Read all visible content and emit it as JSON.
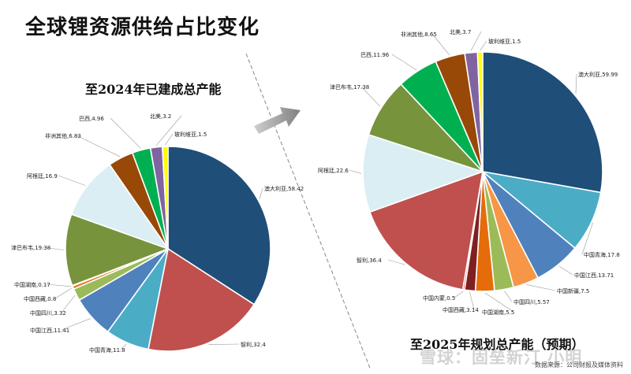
{
  "header": {
    "title": "全球锂资源供给占比变化",
    "footer": "数据来源：公司财报及媒体资料",
    "watermark": "雪球：固垒新汀 小明"
  },
  "chart_data": [
    {
      "type": "pie",
      "title": "至2024年已建成总产能",
      "slices": [
        {
          "label": "澳大利亚,58.42",
          "value": 58.42,
          "color": "#1f4e79"
        },
        {
          "label": "智利,32.4",
          "value": 32.4,
          "color": "#c0504d"
        },
        {
          "label": "中国青海,11.8",
          "value": 11.8,
          "color": "#4bacc6"
        },
        {
          "label": "中国江西,11.41",
          "value": 11.41,
          "color": "#4f81bd"
        },
        {
          "label": "中国四川,3.32",
          "value": 3.32,
          "color": "#9bbb59"
        },
        {
          "label": "中国西藏,0.8",
          "value": 0.8,
          "color": "#e46c0a"
        },
        {
          "label": "中国湖南,0.17",
          "value": 0.17,
          "color": "#7f2020"
        },
        {
          "label": "津巴布韦,19.38",
          "value": 19.38,
          "color": "#77933c"
        },
        {
          "label": "阿根廷,16.9",
          "value": 16.9,
          "color": "#dbeef4"
        },
        {
          "label": "非洲其他,6.83",
          "value": 6.83,
          "color": "#984807"
        },
        {
          "label": "巴西,4.96",
          "value": 4.96,
          "color": "#00b050"
        },
        {
          "label": "北美,3.2",
          "value": 3.2,
          "color": "#8064a2"
        },
        {
          "label": "玻利维亚,1.5",
          "value": 1.5,
          "color": "#ffff00"
        }
      ]
    },
    {
      "type": "pie",
      "title": "至2025年规划总产能（预期）",
      "slices": [
        {
          "label": "澳大利亚,59.99",
          "value": 59.99,
          "color": "#1f4e79"
        },
        {
          "label": "中国青海,17.8",
          "value": 17.8,
          "color": "#4bacc6"
        },
        {
          "label": "中国江西,13.71",
          "value": 13.71,
          "color": "#4f81bd"
        },
        {
          "label": "中国新疆,7.5",
          "value": 7.5,
          "color": "#f79646"
        },
        {
          "label": "中国四川,5.57",
          "value": 5.57,
          "color": "#9bbb59"
        },
        {
          "label": "中国湖南,5.5",
          "value": 5.5,
          "color": "#e46c0a"
        },
        {
          "label": "中国西藏,3.14",
          "value": 3.14,
          "color": "#7f2020"
        },
        {
          "label": "中国内蒙,0.5",
          "value": 0.5,
          "color": "#c00000"
        },
        {
          "label": "智利,36.4",
          "value": 36.4,
          "color": "#c0504d"
        },
        {
          "label": "阿根廷,22.6",
          "value": 22.6,
          "color": "#dbeef4"
        },
        {
          "label": "津巴布韦,17.38",
          "value": 17.38,
          "color": "#77933c"
        },
        {
          "label": "巴西,11.96",
          "value": 11.96,
          "color": "#00b050"
        },
        {
          "label": "非洲其他,8.65",
          "value": 8.65,
          "color": "#984807"
        },
        {
          "label": "北美,3.7",
          "value": 3.7,
          "color": "#8064a2"
        },
        {
          "label": "玻利维亚,1.5",
          "value": 1.5,
          "color": "#ffff00"
        }
      ]
    }
  ]
}
